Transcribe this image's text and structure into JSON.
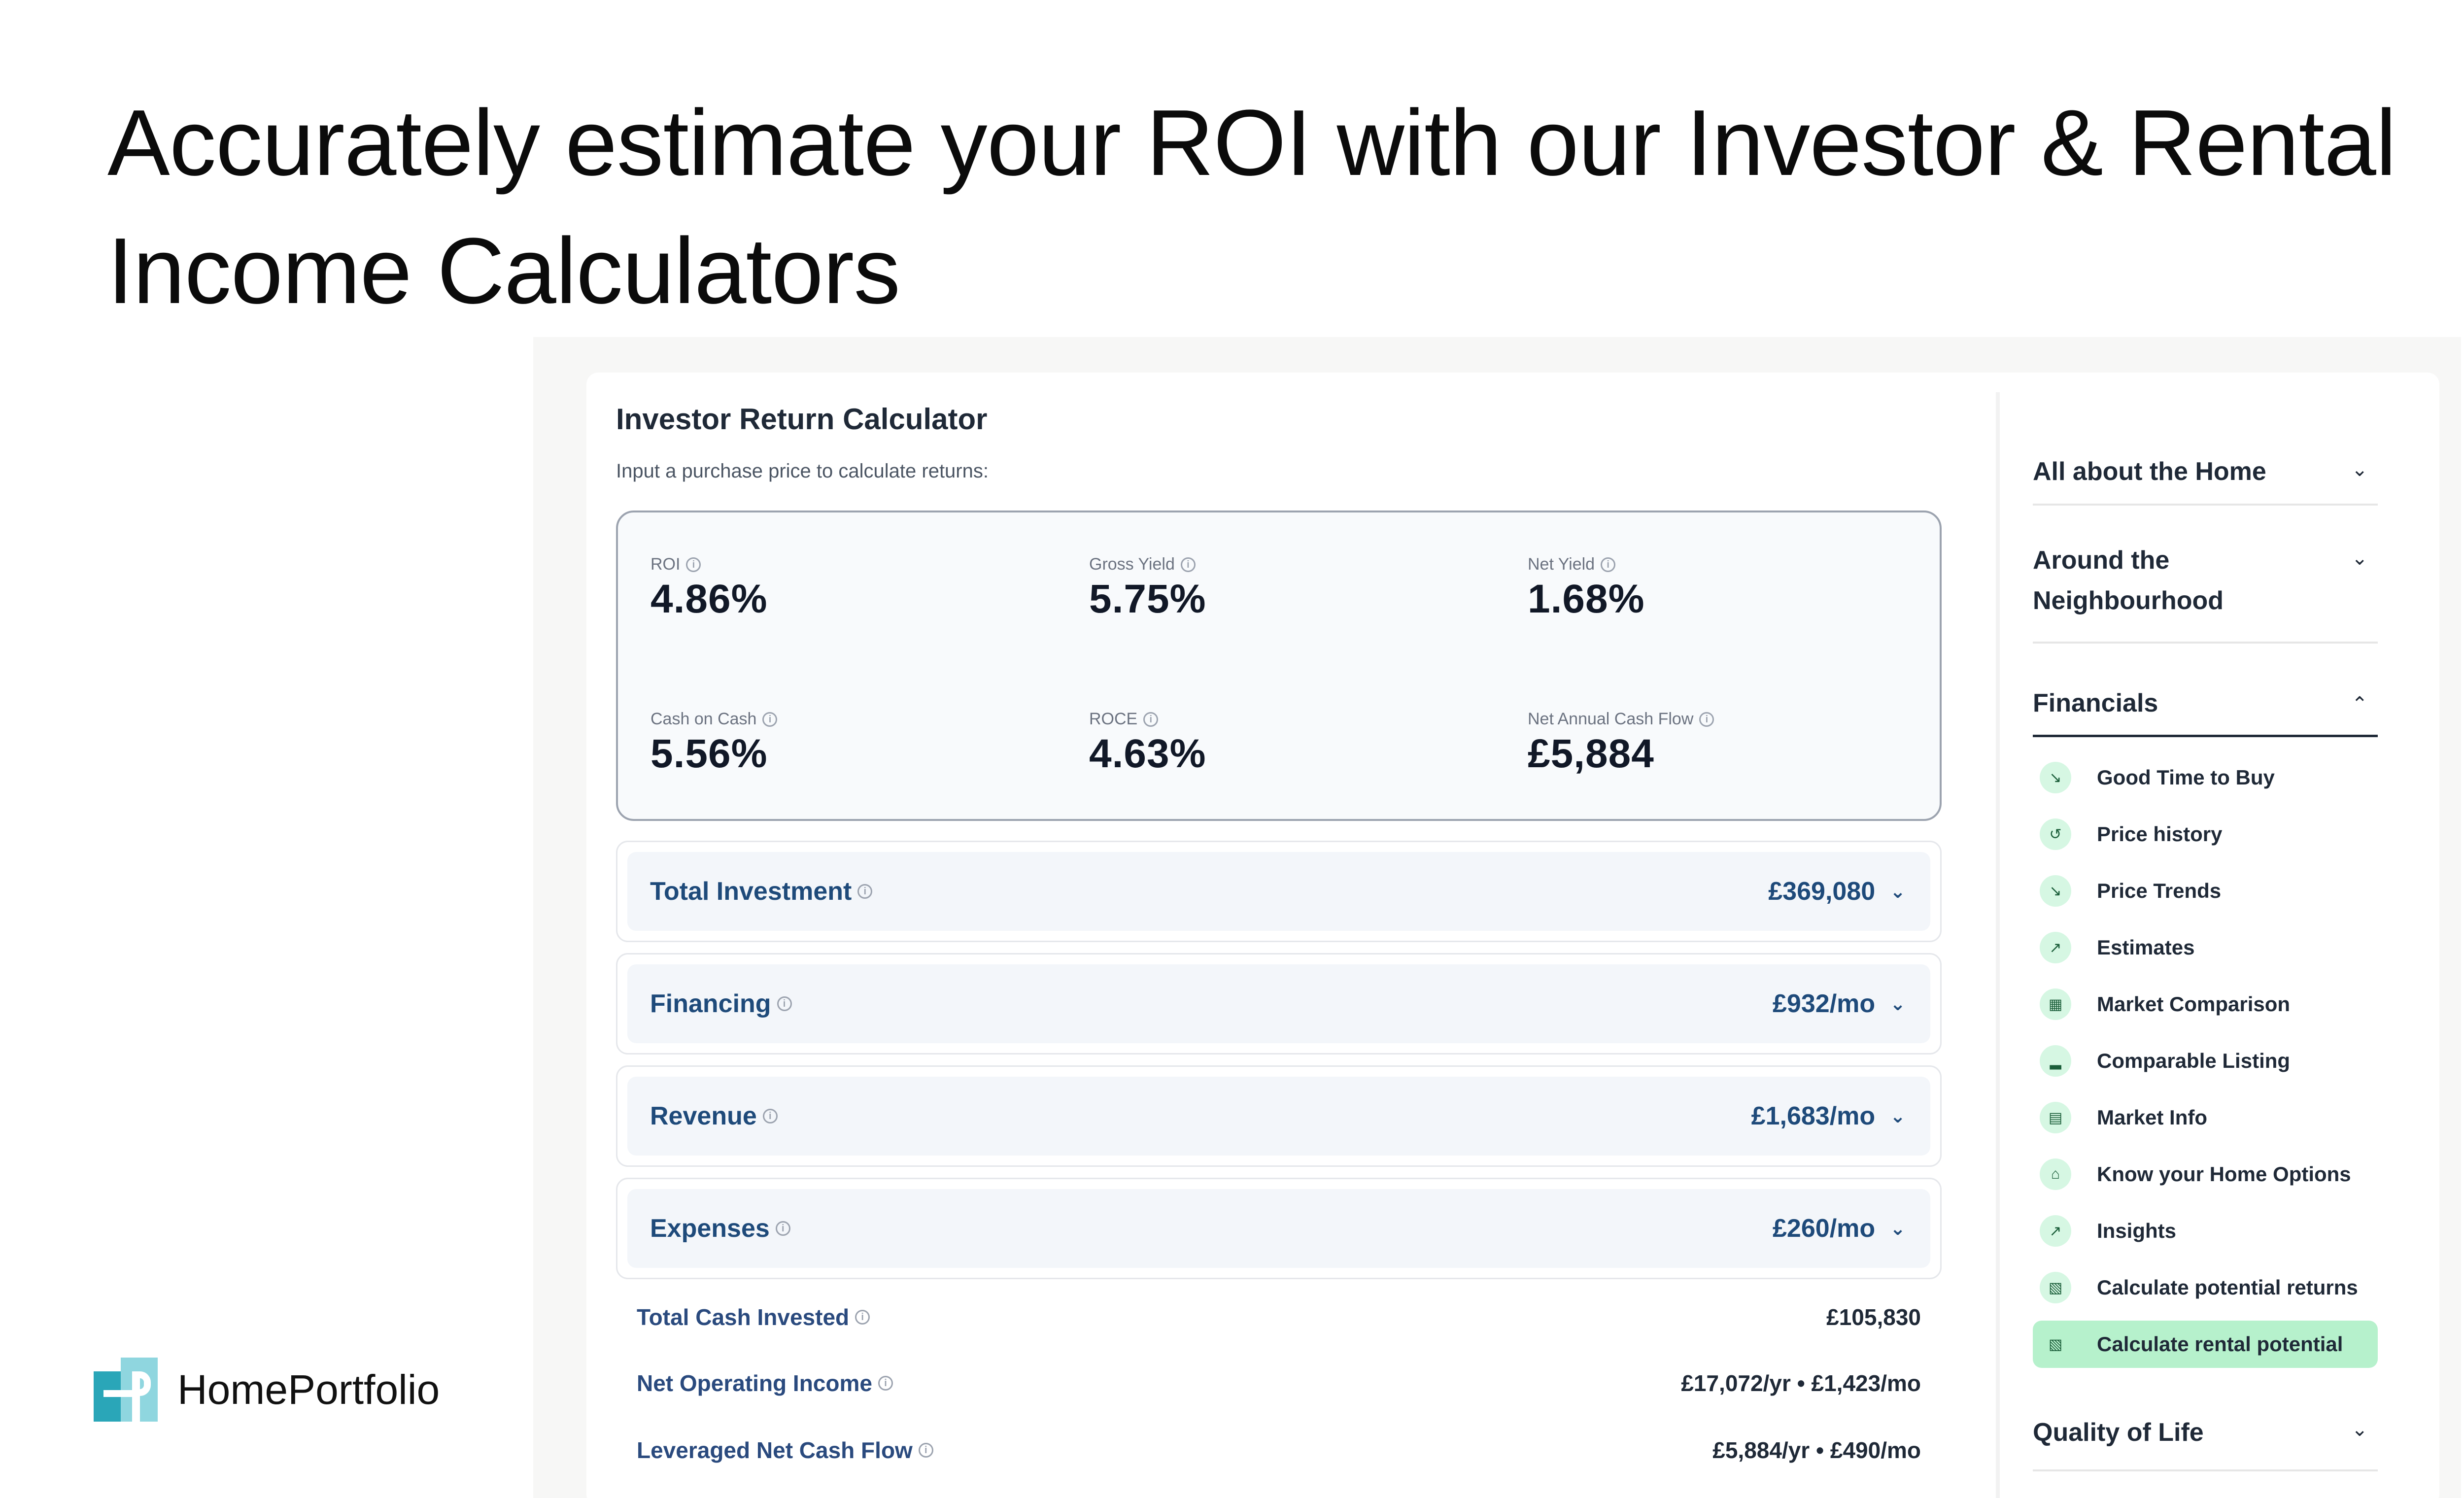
{
  "headline": {
    "line1": "Accurately estimate your ROI with our Investor & Rental",
    "line2": "Income Calculators"
  },
  "brand": {
    "name": "HomePortfolio",
    "logo_icon": "homeportfolio-logo-icon"
  },
  "calculator": {
    "title": "Investor Return Calculator",
    "subtitle": "Input a purchase price to calculate returns:",
    "metrics": [
      {
        "label": "ROI",
        "value": "4.86%"
      },
      {
        "label": "Gross Yield",
        "value": "5.75%"
      },
      {
        "label": "Net Yield",
        "value": "1.68%"
      },
      {
        "label": "Cash on Cash",
        "value": "5.56%"
      },
      {
        "label": "ROCE",
        "value": "4.63%"
      },
      {
        "label": "Net Annual Cash Flow",
        "value": "£5,884"
      }
    ],
    "sections": [
      {
        "label": "Total Investment",
        "value": "£369,080"
      },
      {
        "label": "Financing",
        "value": "£932/mo"
      },
      {
        "label": "Revenue",
        "value": "£1,683/mo"
      },
      {
        "label": "Expenses",
        "value": "£260/mo"
      }
    ],
    "summary": [
      {
        "label": "Total Cash Invested",
        "value": "£105,830"
      },
      {
        "label": "Net Operating Income",
        "value": "£17,072/yr • £1,423/mo"
      },
      {
        "label": "Leveraged Net Cash Flow",
        "value": "£5,884/yr • £490/mo"
      }
    ],
    "icons": {
      "info": "info-icon",
      "chevron": "chevron-down-icon"
    }
  },
  "sidebar": {
    "sections": [
      {
        "title": "All about the Home",
        "state": "collapsed"
      },
      {
        "title_line1": "Around the",
        "title_line2": "Neighbourhood",
        "state": "collapsed"
      },
      {
        "title": "Financials",
        "state": "expanded"
      },
      {
        "title": "Quality of Life",
        "state": "collapsed"
      }
    ],
    "financial_items": [
      {
        "label": "Good Time to Buy",
        "icon": "line-chart-icon"
      },
      {
        "label": "Price history",
        "icon": "history-icon"
      },
      {
        "label": "Price Trends",
        "icon": "line-chart-icon"
      },
      {
        "label": "Estimates",
        "icon": "line-chart-icon"
      },
      {
        "label": "Market Comparison",
        "icon": "grid-icon"
      },
      {
        "label": "Comparable Listing",
        "icon": "bar-chart-icon"
      },
      {
        "label": "Market Info",
        "icon": "newspaper-icon"
      },
      {
        "label": "Know your Home Options",
        "icon": "home-icon"
      },
      {
        "label": "Insights",
        "icon": "trend-icon"
      },
      {
        "label": "Calculate potential returns",
        "icon": "calculator-icon"
      },
      {
        "label": "Calculate rental potential",
        "icon": "calculator-icon",
        "selected": true
      }
    ],
    "colors": {
      "selected_bg": "#b6f1cc",
      "icon_bg": "#d6f7e3"
    }
  }
}
